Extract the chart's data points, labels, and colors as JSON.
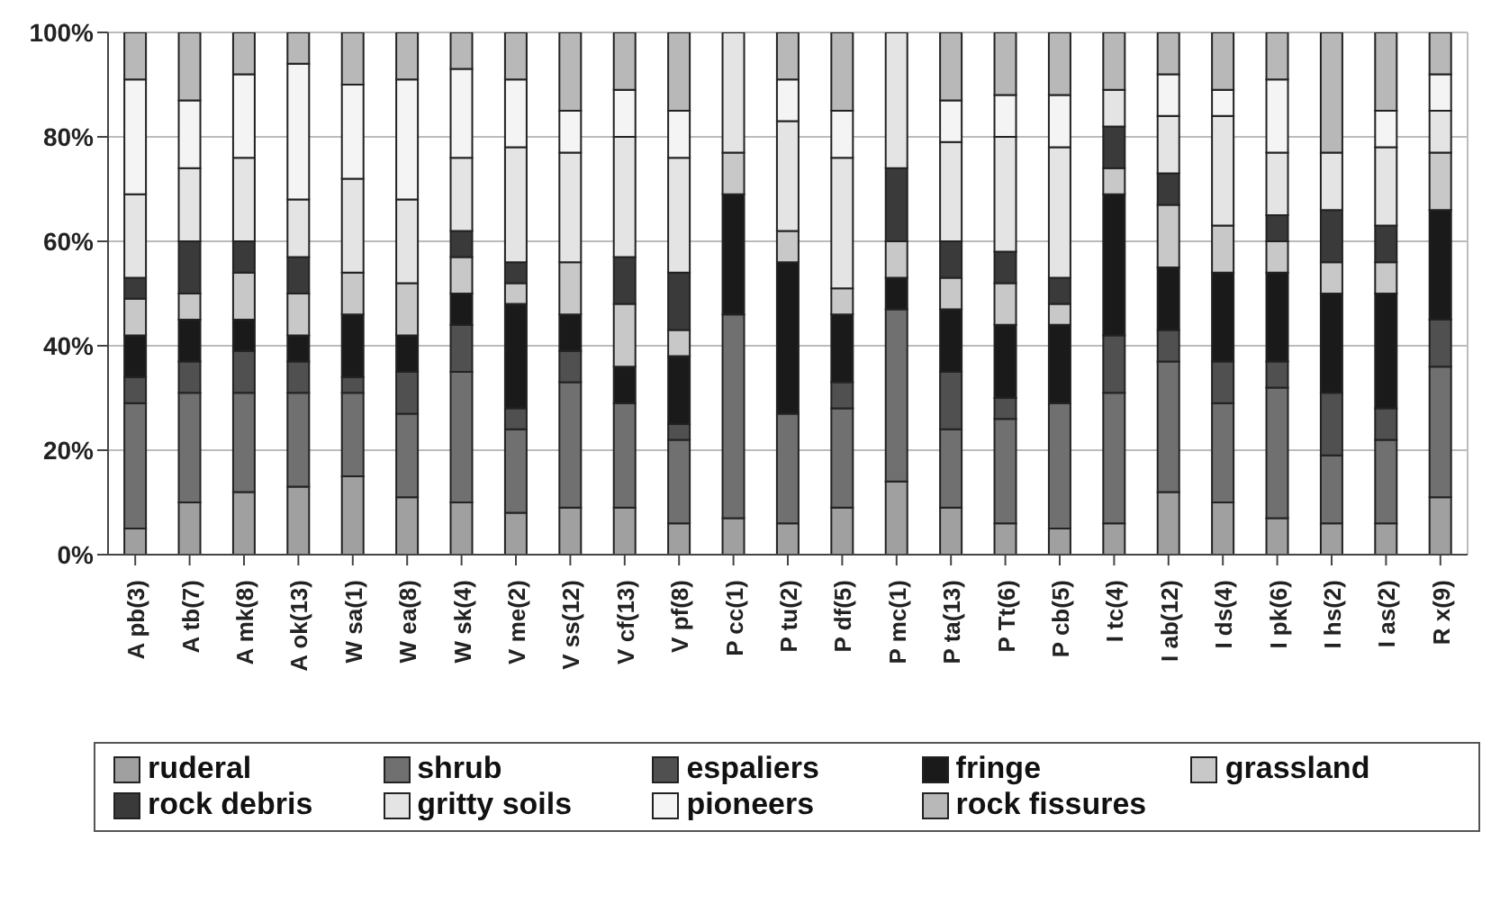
{
  "chart_data": {
    "type": "bar",
    "stacked": true,
    "categories": [
      "A pb(3)",
      "A tb(7)",
      "A mk(8)",
      "A ok(13)",
      "W sa(1)",
      "W ea(8)",
      "W sk(4)",
      "V me(2)",
      "V ss(12)",
      "V cf(13)",
      "V pf(8)",
      "P cc(1)",
      "P tu(2)",
      "P df(5)",
      "P mc(1)",
      "P ta(13)",
      "P Tt(6)",
      "P cb(5)",
      "I tc(4)",
      "I ab(12)",
      "I ds(4)",
      "I pk(6)",
      "I hs(2)",
      "I as(2)",
      "R x(9)"
    ],
    "series": [
      {
        "name": "ruderal",
        "color": "#a0a0a0",
        "values": [
          5,
          10,
          12,
          13,
          15,
          11,
          10,
          8,
          9,
          9,
          6,
          7,
          6,
          9,
          14,
          9,
          6,
          5,
          6,
          12,
          10,
          7,
          6,
          6,
          11
        ]
      },
      {
        "name": "shrub",
        "color": "#707070",
        "values": [
          24,
          21,
          19,
          18,
          16,
          16,
          25,
          16,
          24,
          20,
          16,
          39,
          21,
          19,
          33,
          15,
          20,
          24,
          25,
          25,
          19,
          25,
          13,
          16,
          25
        ]
      },
      {
        "name": "espaliers",
        "color": "#505050",
        "values": [
          5,
          6,
          8,
          6,
          3,
          8,
          9,
          4,
          6,
          0,
          3,
          0,
          0,
          5,
          0,
          11,
          4,
          0,
          11,
          6,
          8,
          5,
          12,
          6,
          9
        ]
      },
      {
        "name": "fringe",
        "color": "#1a1a1a",
        "values": [
          8,
          8,
          6,
          5,
          12,
          7,
          6,
          20,
          7,
          7,
          13,
          23,
          29,
          13,
          6,
          12,
          14,
          15,
          27,
          12,
          17,
          17,
          19,
          22,
          21
        ]
      },
      {
        "name": "grassland",
        "color": "#c8c8c8",
        "values": [
          7,
          5,
          9,
          8,
          8,
          10,
          7,
          4,
          10,
          12,
          5,
          8,
          6,
          5,
          7,
          6,
          8,
          4,
          5,
          12,
          9,
          6,
          6,
          6,
          11
        ]
      },
      {
        "name": "rock debris",
        "color": "#3a3a3a",
        "values": [
          4,
          10,
          6,
          7,
          0,
          0,
          5,
          4,
          0,
          9,
          11,
          0,
          0,
          0,
          14,
          7,
          6,
          5,
          8,
          6,
          0,
          5,
          10,
          7,
          0
        ]
      },
      {
        "name": "gritty soils",
        "color": "#e4e4e4",
        "values": [
          16,
          14,
          16,
          11,
          18,
          16,
          14,
          22,
          21,
          23,
          22,
          23,
          21,
          25,
          26,
          19,
          22,
          25,
          7,
          11,
          21,
          12,
          11,
          15,
          8
        ]
      },
      {
        "name": "pioneers",
        "color": "#f4f4f4",
        "values": [
          22,
          13,
          16,
          26,
          18,
          23,
          17,
          13,
          8,
          9,
          9,
          0,
          8,
          9,
          0,
          8,
          8,
          10,
          0,
          8,
          5,
          14,
          0,
          7,
          7
        ]
      },
      {
        "name": "rock fissures",
        "color": "#b8b8b8",
        "values": [
          9,
          13,
          8,
          6,
          10,
          9,
          7,
          9,
          15,
          11,
          15,
          0,
          9,
          15,
          0,
          13,
          12,
          12,
          11,
          8,
          11,
          9,
          23,
          15,
          8
        ]
      }
    ],
    "ylim": [
      0,
      100
    ],
    "yticks": [
      {
        "value": 0,
        "label": "0%"
      },
      {
        "value": 20,
        "label": "20%"
      },
      {
        "value": 40,
        "label": "40%"
      },
      {
        "value": 60,
        "label": "60%"
      },
      {
        "value": 80,
        "label": "80%"
      },
      {
        "value": 100,
        "label": "100%"
      }
    ],
    "grid": true,
    "legend": "bottom"
  }
}
